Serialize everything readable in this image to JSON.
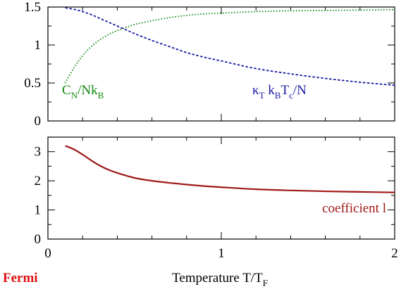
{
  "chart_data": [
    {
      "type": "line",
      "panel": "top",
      "x_range": [
        0,
        2
      ],
      "ylim": [
        0,
        1.5
      ],
      "y_ticks": [
        "0",
        "0.5",
        "1",
        "1.5"
      ],
      "grid": false,
      "series": [
        {
          "name_parts": [
            "C",
            "N",
            "/Nk",
            "B"
          ],
          "color": "#118811",
          "style": "dotted",
          "x": [
            0.1,
            0.15,
            0.2,
            0.25,
            0.3,
            0.35,
            0.4,
            0.45,
            0.5,
            0.6,
            0.7,
            0.8,
            0.9,
            1.0,
            1.2,
            1.4,
            1.6,
            1.8,
            2.0
          ],
          "y": [
            0.5,
            0.7,
            0.86,
            0.98,
            1.07,
            1.14,
            1.19,
            1.23,
            1.27,
            1.32,
            1.36,
            1.39,
            1.41,
            1.42,
            1.44,
            1.45,
            1.455,
            1.46,
            1.465
          ]
        },
        {
          "name_parts": [
            "κ",
            "T",
            " k",
            "B",
            "T",
            "c",
            "/N"
          ],
          "color": "#1a1aa6",
          "style": "dashed",
          "x": [
            0.1,
            0.15,
            0.2,
            0.25,
            0.3,
            0.35,
            0.4,
            0.45,
            0.5,
            0.6,
            0.7,
            0.8,
            0.9,
            1.0,
            1.2,
            1.4,
            1.6,
            1.8,
            2.0
          ],
          "y": [
            1.49,
            1.47,
            1.44,
            1.4,
            1.35,
            1.3,
            1.25,
            1.2,
            1.15,
            1.06,
            0.98,
            0.9,
            0.84,
            0.79,
            0.69,
            0.62,
            0.56,
            0.51,
            0.47
          ]
        }
      ]
    },
    {
      "type": "line",
      "panel": "bottom",
      "x_range": [
        0,
        2
      ],
      "x_ticks": [
        "0",
        "1",
        "2"
      ],
      "xlabel_parts": [
        "Temperature T/T",
        "F"
      ],
      "ylim": [
        0,
        3.5
      ],
      "y_ticks": [
        "0",
        "1",
        "2",
        "3"
      ],
      "grid": false,
      "series": [
        {
          "name": "coefficient l",
          "color": "#a01818",
          "style": "solid",
          "x": [
            0.1,
            0.15,
            0.2,
            0.25,
            0.3,
            0.35,
            0.4,
            0.5,
            0.6,
            0.7,
            0.8,
            0.9,
            1.0,
            1.2,
            1.4,
            1.6,
            1.8,
            2.0
          ],
          "y": [
            3.2,
            3.08,
            2.9,
            2.7,
            2.52,
            2.38,
            2.27,
            2.1,
            2.0,
            1.93,
            1.87,
            1.82,
            1.78,
            1.71,
            1.67,
            1.64,
            1.62,
            1.6
          ]
        }
      ]
    }
  ],
  "corner_label": "Fermi",
  "colors": {
    "corner_label": "#dd1111",
    "axis": "#000000"
  }
}
